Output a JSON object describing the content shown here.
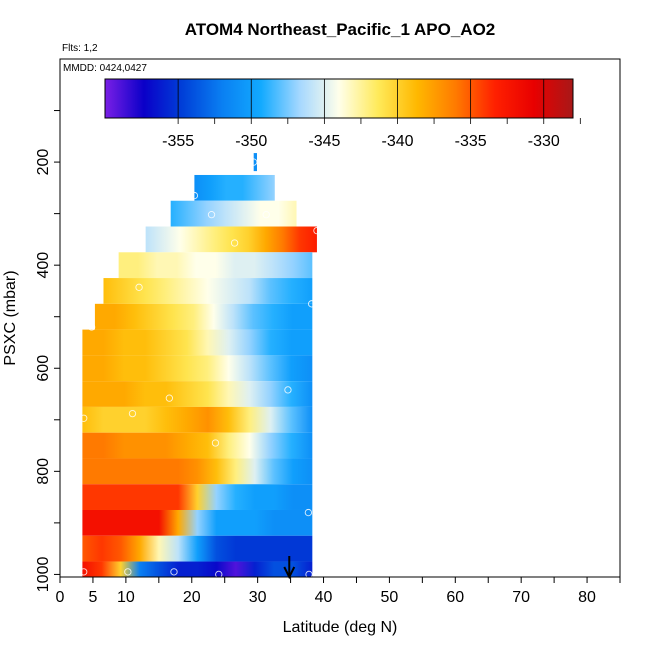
{
  "chart_data": {
    "type": "heatmap",
    "title": "ATOM4 Northeast_Pacific_1 APO_AO2",
    "flights_label": "Flts: 1,2",
    "dates_label": "MMDD: 0424,0427",
    "xlabel": "Latitude (deg N)",
    "ylabel": "PSXC (mbar)",
    "xlim": [
      0,
      85
    ],
    "ylim": [
      1005,
      0
    ],
    "x_ticks": [
      0,
      5,
      10,
      20,
      30,
      40,
      50,
      60,
      70,
      80
    ],
    "y_ticks": [
      200,
      400,
      600,
      800,
      1000
    ],
    "colorbar": {
      "range": [
        -360,
        -328
      ],
      "ticks": [
        -355,
        -350,
        -345,
        -340,
        -335,
        -330
      ],
      "tick_labels": [
        "-355",
        "-350",
        "-345",
        "-340",
        "-335",
        "-330"
      ],
      "colors": [
        "#7a1fe6",
        "#0a00c8",
        "#0040d8",
        "#0a7ff2",
        "#12aaff",
        "#a6d8ff",
        "#ffffea",
        "#ffea5a",
        "#ffb800",
        "#ff7a00",
        "#ff2000",
        "#e80000",
        "#a81818"
      ]
    },
    "arrow_latitude": 34.8,
    "bands": [
      {
        "p": 200,
        "height": 35,
        "lat_start": 29.4,
        "lat_end": 29.9,
        "values": [
          -351
        ]
      },
      {
        "p": 250,
        "height": 50,
        "lat_start": 20.4,
        "lat_end": 32.6,
        "values": [
          -351,
          -350,
          -349,
          -349,
          -348,
          -347
        ]
      },
      {
        "p": 300,
        "height": 50,
        "lat_start": 16.8,
        "lat_end": 35.9,
        "values": [
          -349,
          -348,
          -347,
          -346,
          -345,
          -344,
          -344,
          -343
        ]
      },
      {
        "p": 350,
        "height": 50,
        "lat_start": 13.0,
        "lat_end": 39.0,
        "values": [
          -346,
          -345,
          -344,
          -343,
          -342,
          -341,
          -340,
          -338,
          -336,
          -334,
          -333
        ]
      },
      {
        "p": 400,
        "height": 50,
        "lat_start": 8.9,
        "lat_end": 38.3,
        "values": [
          -342,
          -342,
          -343,
          -343,
          -344,
          -344,
          -345,
          -345,
          -346,
          -347,
          -348
        ]
      },
      {
        "p": 450,
        "height": 50,
        "lat_start": 6.6,
        "lat_end": 38.3,
        "values": [
          -339,
          -340,
          -341,
          -342,
          -343,
          -344,
          -345,
          -346,
          -348,
          -349,
          -350
        ]
      },
      {
        "p": 500,
        "height": 50,
        "lat_start": 5.3,
        "lat_end": 38.3,
        "values": [
          -338,
          -338,
          -339,
          -340,
          -341,
          -342,
          -344,
          -346,
          -348,
          -349,
          -350,
          -350
        ]
      },
      {
        "p": 550,
        "height": 50,
        "lat_start": 3.4,
        "lat_end": 38.3,
        "values": [
          -338,
          -338,
          -339,
          -339,
          -340,
          -341,
          -343,
          -345,
          -347,
          -349,
          -350,
          -350
        ]
      },
      {
        "p": 600,
        "height": 50,
        "lat_start": 3.4,
        "lat_end": 38.3,
        "values": [
          -338,
          -338,
          -339,
          -339,
          -340,
          -341,
          -342,
          -344,
          -346,
          -348,
          -350,
          -351
        ]
      },
      {
        "p": 650,
        "height": 50,
        "lat_start": 3.4,
        "lat_end": 38.3,
        "values": [
          -338,
          -338,
          -338,
          -339,
          -339,
          -340,
          -341,
          -343,
          -345,
          -347,
          -349,
          -351
        ]
      },
      {
        "p": 700,
        "height": 50,
        "lat_start": 3.4,
        "lat_end": 38.3,
        "values": [
          -339,
          -340,
          -340,
          -340,
          -339,
          -338,
          -337,
          -339,
          -342,
          -345,
          -348,
          -351
        ]
      },
      {
        "p": 750,
        "height": 50,
        "lat_start": 3.4,
        "lat_end": 38.3,
        "values": [
          -336,
          -336,
          -337,
          -337,
          -337,
          -338,
          -339,
          -342,
          -344,
          -347,
          -349,
          -351
        ]
      },
      {
        "p": 800,
        "height": 50,
        "lat_start": 3.4,
        "lat_end": 38.3,
        "values": [
          -336,
          -336,
          -336,
          -336,
          -336,
          -336,
          -337,
          -339,
          -342,
          -345,
          -348,
          -350,
          -351
        ]
      },
      {
        "p": 850,
        "height": 50,
        "lat_start": 3.4,
        "lat_end": 38.3,
        "values": [
          -334,
          -334,
          -334,
          -334,
          -334,
          -334,
          -340,
          -347,
          -349,
          -350,
          -350,
          -351,
          -351
        ]
      },
      {
        "p": 900,
        "height": 50,
        "lat_start": 3.4,
        "lat_end": 38.3,
        "values": [
          -332,
          -332,
          -332,
          -332,
          -332,
          -338,
          -347,
          -350,
          -350,
          -350,
          -351,
          -351,
          -351
        ]
      },
      {
        "p": 950,
        "height": 50,
        "lat_start": 3.4,
        "lat_end": 38.3,
        "values": [
          -335,
          -334,
          -335,
          -338,
          -343,
          -346,
          -350,
          -354,
          -355,
          -355,
          -355,
          -355,
          -355
        ]
      },
      {
        "p": 990,
        "height": 30,
        "lat_start": 3.4,
        "lat_end": 38.3,
        "values": [
          -332,
          -334,
          -340,
          -352,
          -354,
          -356,
          -356,
          -357,
          -359,
          -356,
          -354,
          -354,
          -356
        ]
      }
    ],
    "points": [
      {
        "lat": 29.4,
        "p": 200
      },
      {
        "lat": 27.5,
        "p": 217
      },
      {
        "lat": 20.4,
        "p": 265
      },
      {
        "lat": 23.0,
        "p": 302
      },
      {
        "lat": 31.3,
        "p": 302
      },
      {
        "lat": 26.5,
        "p": 357
      },
      {
        "lat": 39.0,
        "p": 333
      },
      {
        "lat": 12.0,
        "p": 443
      },
      {
        "lat": 38.2,
        "p": 475
      },
      {
        "lat": 4.8,
        "p": 520
      },
      {
        "lat": 34.6,
        "p": 642
      },
      {
        "lat": 16.6,
        "p": 658
      },
      {
        "lat": 3.6,
        "p": 697
      },
      {
        "lat": 11.0,
        "p": 688
      },
      {
        "lat": 23.6,
        "p": 745
      },
      {
        "lat": 37.7,
        "p": 880
      },
      {
        "lat": 3.6,
        "p": 995
      },
      {
        "lat": 10.3,
        "p": 995
      },
      {
        "lat": 17.3,
        "p": 995
      },
      {
        "lat": 24.1,
        "p": 1000
      },
      {
        "lat": 37.8,
        "p": 1000
      }
    ]
  }
}
